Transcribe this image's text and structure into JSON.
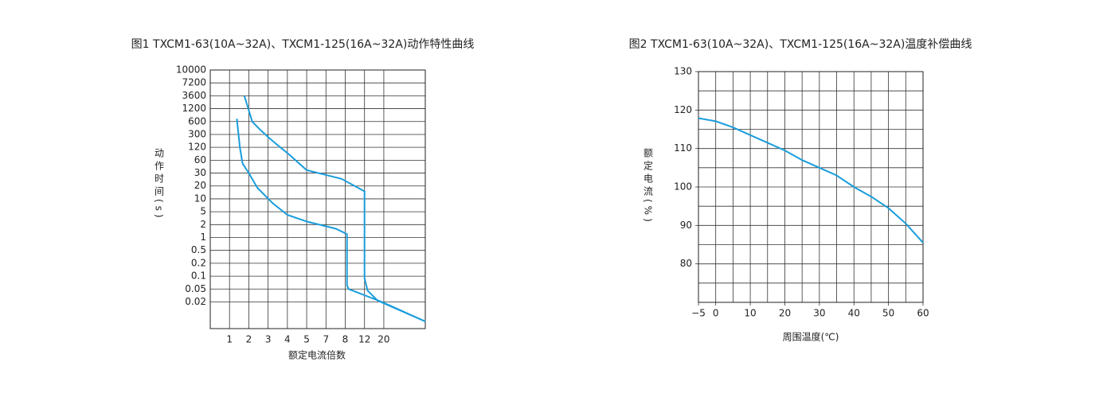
{
  "chart_data": [
    {
      "type": "line",
      "title": "图1 TXCM1-63(10A~32A)、TXCM1-125(16A~32A)动作特性曲线",
      "x_label": "额定电流倍数",
      "y_label": "动作时间(s)",
      "xscale": "log",
      "yscale": "log",
      "grid": true,
      "xlim": [
        0.5,
        60
      ],
      "xticks": [
        1,
        2,
        3,
        4,
        5,
        7,
        8,
        12,
        20
      ],
      "ylim": [
        0.003,
        10000
      ],
      "yticks": [
        10000,
        7200,
        3600,
        1200,
        600,
        300,
        120,
        60,
        30,
        20,
        10,
        5,
        2,
        1,
        0.5,
        0.2,
        0.1,
        0.05,
        0.02
      ],
      "series": [
        {
          "color": "#1a9ddb",
          "x": [
            1.3,
            1.45,
            1.6,
            2,
            2.4,
            3.2,
            4,
            5,
            7.5,
            8.3,
            8.3,
            8.6,
            19,
            60
          ],
          "values": [
            700,
            120,
            50,
            30,
            18,
            8,
            4,
            2.5,
            1.6,
            1.2,
            0.06,
            0.05,
            0.02,
            0.005
          ]
        },
        {
          "color": "#1a9ddb",
          "x": [
            1.7,
            2.15,
            2.5,
            3,
            3.4,
            4.1,
            5,
            7.8,
            12,
            12,
            13,
            17,
            60
          ],
          "values": [
            3600,
            600,
            400,
            250,
            150,
            80,
            35,
            25,
            15,
            0.09,
            0.045,
            0.022,
            0.005
          ]
        }
      ]
    },
    {
      "type": "line",
      "title": "图2 TXCM1-63(10A~32A)、TXCM1-125(16A~32A)温度补偿曲线",
      "x_label": "周围温度(℃)",
      "y_label": "额定电流(%)",
      "xscale": "linear",
      "yscale": "linear",
      "x_grid_step": 5,
      "y_grid_step": 5,
      "xlim": [
        -5,
        60
      ],
      "xticks": [
        {
          "value": -5,
          "label": "−5"
        },
        0,
        10,
        20,
        30,
        40,
        50,
        60
      ],
      "ylim": [
        70,
        130
      ],
      "yticks": [
        80,
        90,
        100,
        110,
        120,
        130
      ],
      "x": [
        -5,
        0,
        5,
        10,
        15,
        20,
        25,
        30,
        35,
        40,
        45,
        50,
        55,
        60
      ],
      "series": [
        {
          "color": "#1a9ddb",
          "values": [
            117.9,
            117.1,
            115.5,
            113.5,
            111.5,
            109.5,
            107,
            105,
            103,
            100,
            97.5,
            94.5,
            90.5,
            85.5
          ]
        }
      ]
    }
  ]
}
